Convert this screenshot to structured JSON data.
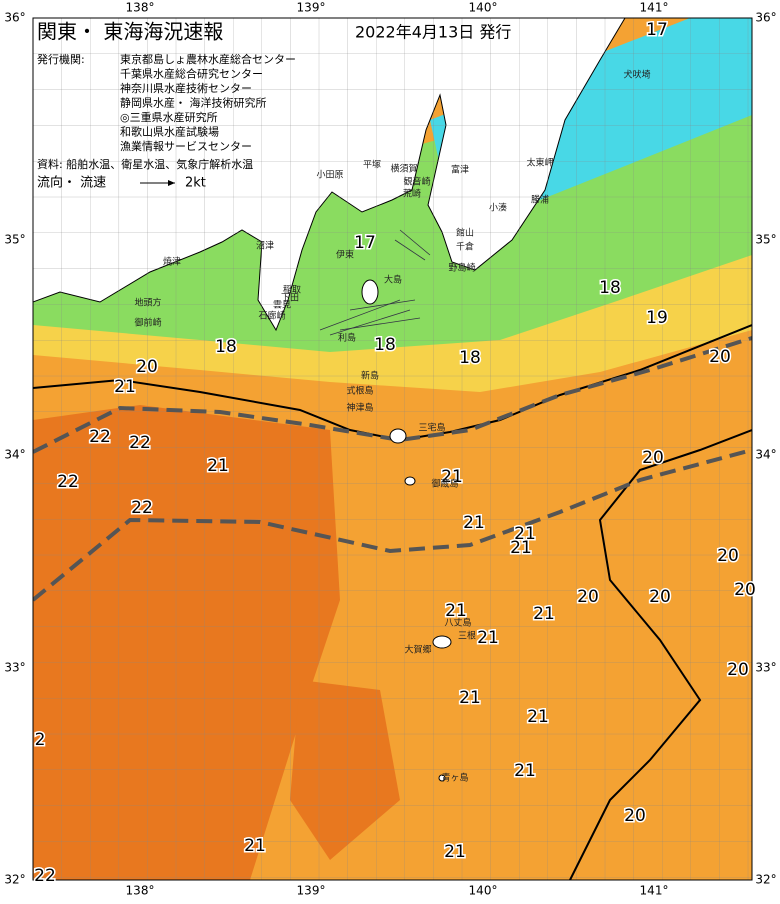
{
  "header": {
    "title": "関東・ 東海海況速報",
    "date": "2022年4月13日 発行"
  },
  "agencies": {
    "label": "発行機関:",
    "items": [
      "東京都島しょ農林水産総合センター",
      "千葉県水産総合研究センター",
      "神奈川県水産技術センター",
      "静岡県水産・ 海洋技術研究所",
      "◎三重県水産研究所",
      "和歌山県水産試験場",
      "漁業情報サービスセンター"
    ]
  },
  "source": "資料: 船舶水温、衛星水温、気象庁解析水温",
  "legend": {
    "label": "流向・ 流速",
    "speed": "2kt"
  },
  "map": {
    "lon_labels": [
      "138°",
      "139°",
      "140°",
      "141°"
    ],
    "lat_labels": [
      "36°",
      "35°",
      "34°",
      "33°",
      "32°"
    ],
    "temperatures": [
      "17",
      "17",
      "18",
      "19",
      "18",
      "18",
      "18",
      "20",
      "20",
      "21",
      "22",
      "22",
      "21",
      "20",
      "22",
      "21",
      "22",
      "21",
      "21",
      "21",
      "20",
      "20",
      "20",
      "20",
      "21",
      "21",
      "21",
      "20",
      "21",
      "21",
      "2",
      "21",
      "20",
      "21",
      "21",
      "22"
    ],
    "places": [
      "犬吠埼",
      "太東岬",
      "勝浦",
      "小湊",
      "館山",
      "千倉",
      "野島崎",
      "富津",
      "観音崎",
      "荒崎",
      "横須賀",
      "平塚",
      "小田原",
      "伊東",
      "大島",
      "稲取",
      "下田",
      "雲見",
      "石廊崎",
      "焼津",
      "沼津",
      "地頭方",
      "御前崎",
      "利島",
      "新島",
      "式根島",
      "神津島",
      "三宅島",
      "御蔵島",
      "八丈島",
      "三根",
      "大賀郷",
      "青ヶ島"
    ]
  }
}
